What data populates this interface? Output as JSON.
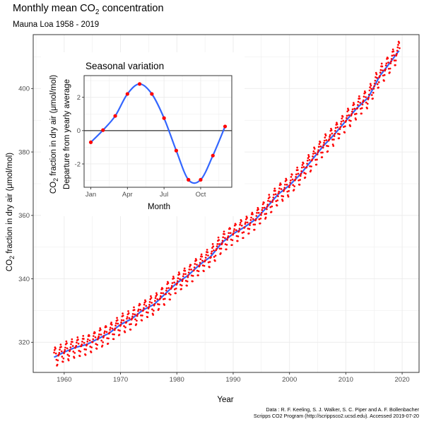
{
  "chart_data": [
    {
      "type": "scatter",
      "title": "Monthly mean CO",
      "title_subscript": "2",
      "title_suffix": " concentration",
      "subtitle": "Mauna Loa 1958 - 2019",
      "xlabel": "Year",
      "ylabel_prefix": "CO",
      "ylabel_subscript": "2",
      "ylabel_suffix": " fraction in dry air (μmol/mol)",
      "xlim": [
        1954.5,
        2023
      ],
      "ylim": [
        310.5,
        417
      ],
      "xticks": [
        1960,
        1970,
        1980,
        1990,
        2000,
        2010,
        2020
      ],
      "xtick_labels": [
        "1960",
        "1970",
        "1980",
        "1990",
        "2000",
        "2010",
        "2020"
      ],
      "yticks": [
        320,
        340,
        360,
        380,
        400
      ],
      "ytick_labels": [
        "320",
        "340",
        "360",
        "380",
        "400"
      ],
      "grid": true,
      "colors": {
        "points": "#ff0000",
        "trend": "#3366ff",
        "panel_border": "#333333",
        "grid": "#ebebeb"
      },
      "x_range_years": [
        1958.2,
        2019.5
      ],
      "trend_points": [
        [
          1958.25,
          315.3
        ],
        [
          1960,
          316.9
        ],
        [
          1962,
          318.4
        ],
        [
          1964,
          319.3
        ],
        [
          1966,
          321.1
        ],
        [
          1968,
          322.9
        ],
        [
          1970,
          325.6
        ],
        [
          1972,
          327.4
        ],
        [
          1974,
          330.2
        ],
        [
          1976,
          332.0
        ],
        [
          1978,
          335.4
        ],
        [
          1980,
          338.7
        ],
        [
          1982,
          341.1
        ],
        [
          1984,
          344.4
        ],
        [
          1986,
          347.0
        ],
        [
          1988,
          351.4
        ],
        [
          1990,
          354.2
        ],
        [
          1992,
          356.3
        ],
        [
          1994,
          358.8
        ],
        [
          1996,
          362.6
        ],
        [
          1998,
          366.7
        ],
        [
          2000,
          369.5
        ],
        [
          2002,
          373.1
        ],
        [
          2004,
          377.5
        ],
        [
          2006,
          381.9
        ],
        [
          2008,
          385.6
        ],
        [
          2010,
          389.8
        ],
        [
          2012,
          393.9
        ],
        [
          2014,
          397.2
        ],
        [
          2016,
          403.9
        ],
        [
          2018,
          408.5
        ],
        [
          2019.4,
          411.9
        ]
      ],
      "seasonal_amplitude_ppm": [
        -0.03,
        0.64,
        1.37,
        2.3,
        2.9,
        2.27,
        0.81,
        -1.23,
        -2.9,
        -3.05,
        -1.68,
        -0.31
      ],
      "noise_ppm": 0.5
    },
    {
      "type": "line",
      "title": "Seasonal variation",
      "xlabel": "Month",
      "ylabel_line1_prefix": "CO",
      "ylabel_line1_subscript": "2",
      "ylabel_line1_suffix": " fraction in dry air (μmol/mol)",
      "ylabel_line2": "Departure from yearly average",
      "xticks": [
        1,
        4,
        7,
        10
      ],
      "xtick_labels": [
        "Jan",
        "Apr",
        "Jul",
        "Oct"
      ],
      "yticks": [
        -2,
        0,
        2
      ],
      "ytick_labels": [
        "-2",
        "0",
        "2"
      ],
      "xlim": [
        0.45,
        12.55
      ],
      "ylim": [
        -3.4,
        3.3
      ],
      "reference_line_y": 0,
      "grid": true,
      "months": [
        1,
        2,
        3,
        4,
        5,
        6,
        7,
        8,
        9,
        10,
        11,
        12
      ],
      "values": [
        -0.7,
        0.03,
        0.88,
        2.2,
        2.8,
        2.2,
        0.75,
        -1.2,
        -2.95,
        -2.95,
        -1.5,
        0.25
      ],
      "colors": {
        "points": "#ff0000",
        "curve": "#3366ff",
        "zero_line": "#000000"
      }
    }
  ],
  "caption": {
    "line1": "Data : R. F. Keeling, S. J. Walker, S. C. Piper and A. F. Bollenbacher",
    "line2": "Scripps CO2 Program (http://scrippsco2.ucsd.edu). Accessed 2019-07-20"
  }
}
